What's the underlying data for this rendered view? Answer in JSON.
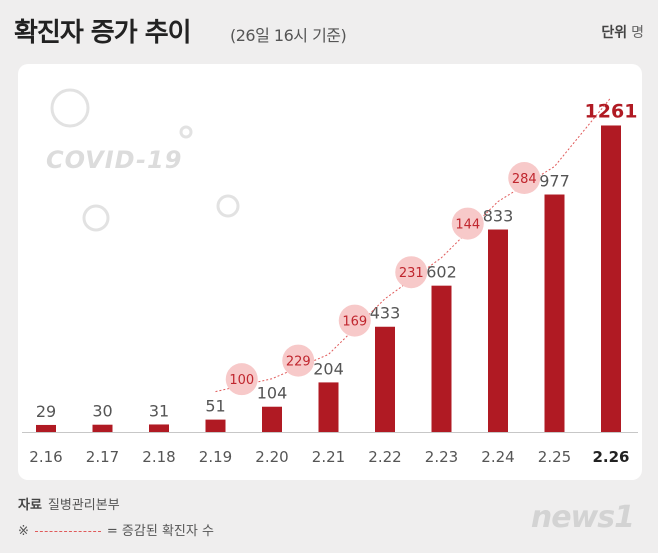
{
  "title": "확진자 증가 추이",
  "subtitle": "(26일 16시 기준)",
  "unit": {
    "label": "단위",
    "value": "명"
  },
  "source": {
    "label": "자료",
    "value": "질병관리본부"
  },
  "note": {
    "mark": "※",
    "text": "= 증감된 확진자 수"
  },
  "watermark": "COVID-19",
  "logo": "news1",
  "colors": {
    "bar": "#b01a23",
    "highlight": "#b01a23",
    "bubble": "#f7c9c9",
    "bubble_text": "#c0262e",
    "axis": "#c7c7c7"
  },
  "chart_data": {
    "type": "bar",
    "categories": [
      "2.16",
      "2.17",
      "2.18",
      "2.19",
      "2.20",
      "2.21",
      "2.22",
      "2.23",
      "2.24",
      "2.25",
      "2.26"
    ],
    "values": [
      29,
      30,
      31,
      51,
      104,
      204,
      433,
      602,
      833,
      977,
      1261
    ],
    "increments": [
      null,
      null,
      null,
      null,
      100,
      229,
      169,
      231,
      144,
      284,
      null
    ],
    "increments_at": [
      "2.20",
      "2.21",
      "2.22",
      "2.23",
      "2.24",
      "2.25",
      "2.26"
    ],
    "ylim": [
      0,
      1300
    ]
  }
}
